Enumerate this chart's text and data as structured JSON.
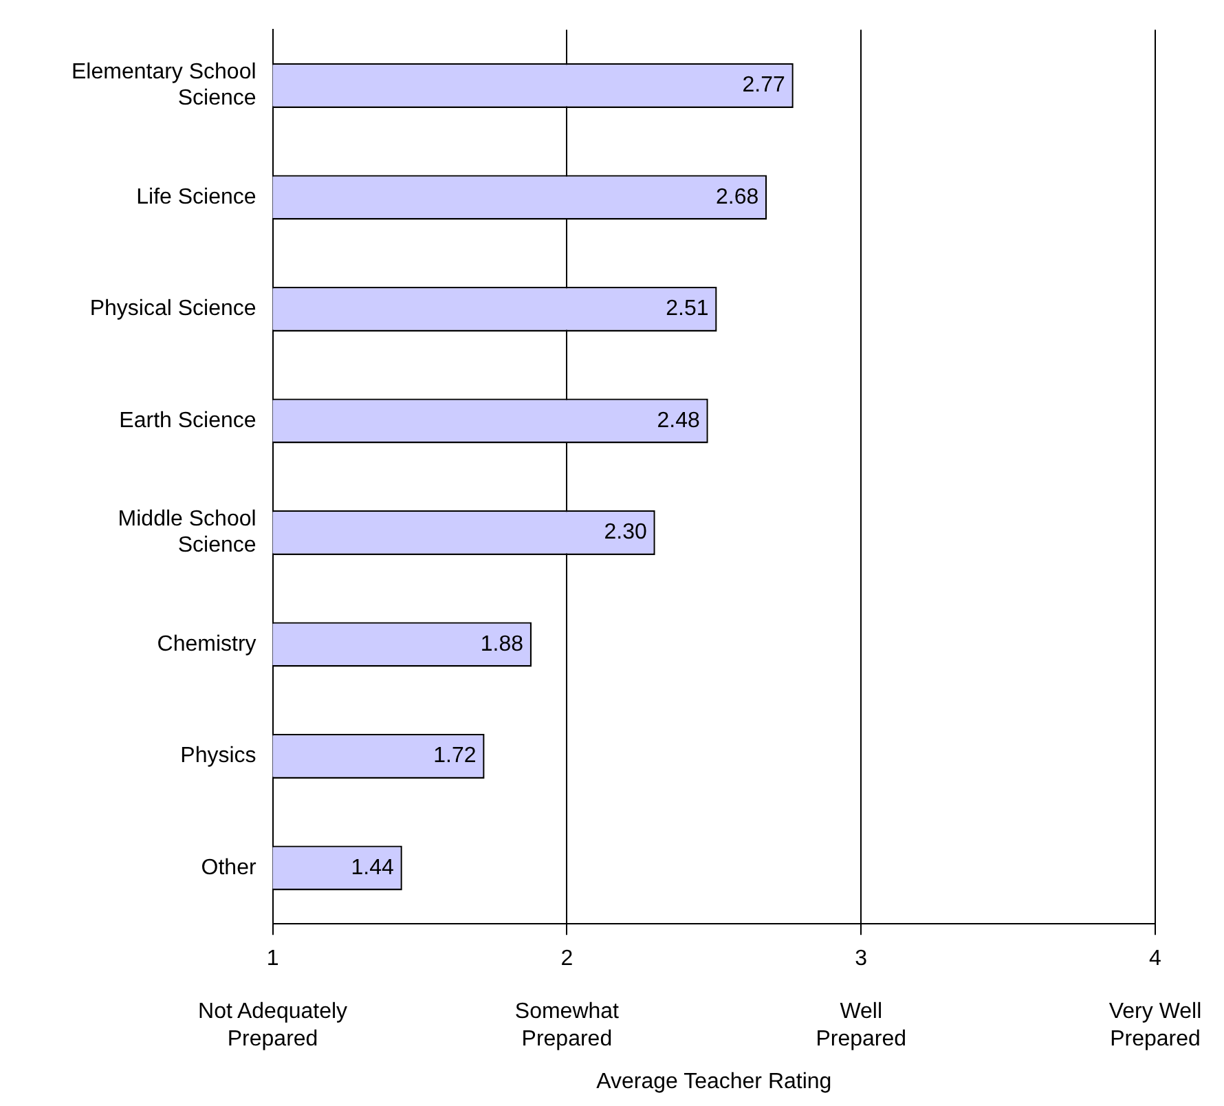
{
  "chart_data": {
    "type": "bar",
    "orientation": "horizontal",
    "xlabel": "Average Teacher Rating",
    "categories": [
      "Elementary School Science",
      "Life Science",
      "Physical Science",
      "Earth Science",
      "Middle School Science",
      "Chemistry",
      "Physics",
      "Other"
    ],
    "values": [
      2.77,
      2.68,
      2.51,
      2.48,
      2.3,
      1.88,
      1.72,
      1.44
    ],
    "value_labels": [
      "2.77",
      "2.68",
      "2.51",
      "2.48",
      "2.30",
      "1.88",
      "1.72",
      "1.44"
    ],
    "color": "#ccccff",
    "xlim": [
      1,
      4
    ],
    "xticks": [
      1,
      2,
      3,
      4
    ],
    "grid": "x",
    "legend": false,
    "annotations": [
      "Not Adequately Prepared",
      "Somewhat Prepared",
      "Well Prepared",
      "Very Well Prepared"
    ]
  }
}
